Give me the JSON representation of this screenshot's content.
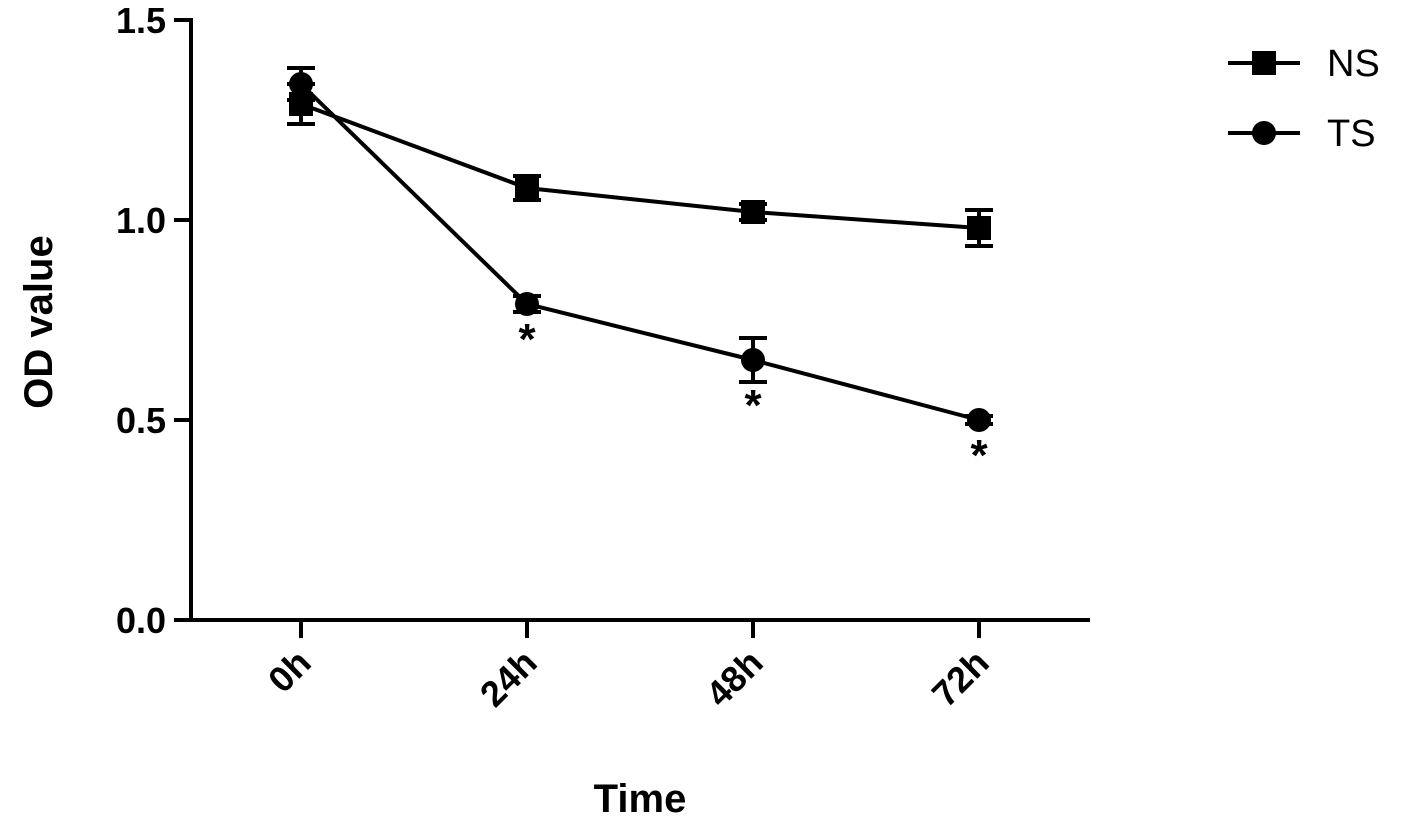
{
  "chart_data": {
    "type": "line",
    "categories": [
      "0h",
      "24h",
      "48h",
      "72h"
    ],
    "xlabel": "Time",
    "ylabel": "OD value",
    "ylim": [
      0,
      1.5
    ],
    "yticks": [
      "0.0",
      "0.5",
      "1.0",
      "1.5"
    ],
    "grid": false,
    "legend_position": "top-right",
    "series": [
      {
        "name": "NS",
        "marker": "square",
        "values": [
          1.29,
          1.08,
          1.02,
          0.98
        ],
        "errors": [
          0.05,
          0.03,
          0.02,
          0.045
        ]
      },
      {
        "name": "TS",
        "marker": "circle",
        "values": [
          1.34,
          0.79,
          0.65,
          0.5
        ],
        "errors": [
          0.04,
          0.02,
          0.055,
          0.01
        ]
      }
    ],
    "annotations": [
      {
        "category": "24h",
        "text": "*"
      },
      {
        "category": "48h",
        "text": "*"
      },
      {
        "category": "72h",
        "text": "*"
      }
    ]
  }
}
